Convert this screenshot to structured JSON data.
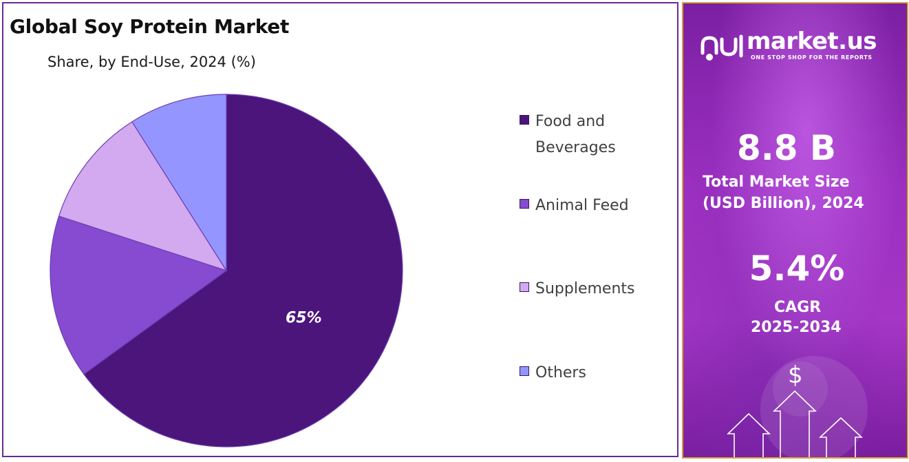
{
  "chart_data": {
    "type": "pie",
    "title": "Global Soy Protein Market",
    "subtitle": "Share, by End-Use, 2024 (%)",
    "categories": [
      "Food and Beverages",
      "Animal Feed",
      "Supplements",
      "Others"
    ],
    "values": [
      65,
      15,
      11,
      9
    ],
    "colors": [
      "#4b157c",
      "#864bd0",
      "#d3a9ef",
      "#9595ff"
    ],
    "data_labels": [
      "65%",
      "",
      "",
      ""
    ],
    "legend_position": "right"
  },
  "legend": [
    {
      "line1": "Food and",
      "line2": "Beverages",
      "color": "#4b157c"
    },
    {
      "line1": "Animal Feed",
      "line2": "",
      "color": "#864bd0"
    },
    {
      "line1": "Supplements",
      "line2": "",
      "color": "#d3a9ef"
    },
    {
      "line1": "Others",
      "line2": "",
      "color": "#9595ff"
    }
  ],
  "info": {
    "brand": "market.us",
    "tagline": "ONE STOP SHOP FOR THE REPORTS",
    "market_size": "8.8 B",
    "market_size_label_1": "Total Market Size",
    "market_size_label_2": "(USD Billion), 2024",
    "cagr": "5.4%",
    "cagr_label_1": "CAGR",
    "cagr_label_2": "2025-2034",
    "currency_symbol": "$"
  }
}
